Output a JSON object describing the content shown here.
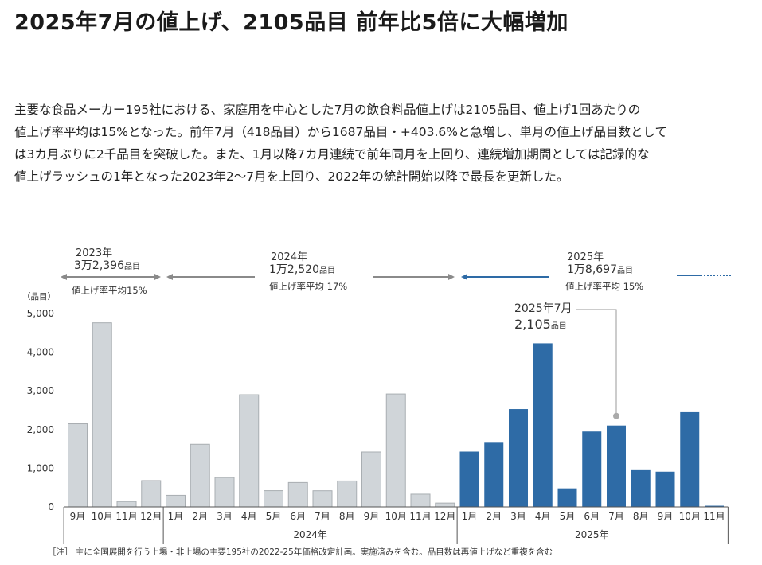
{
  "title": "2025年7月の値上げ、2105品目 前年比5倍に大幅増加",
  "lead_lines": [
    "主要な食品メーカー195社における、家庭用を中心とした7月の飲食料品値上げは2105品目、値上げ1回あたりの",
    "値上げ率平均は15%となった。前年7月（418品目）から1687品目・+403.6%と急増し、単月の値上げ品目数として",
    "は3カ月ぶりに2千品目を突破した。また、1月以降7カ月連続で前年同月を上回り、連続増加期間としては記録的な",
    "値上げラッシュの1年となった2023年2～7月を上回り、2022年の統計開始以降で最長を更新した。"
  ],
  "colors": {
    "gray_bar": "#d0d5d9",
    "gray_bar_stroke": "#a9aeb2",
    "blue_bar": "#2e6ba6",
    "arrow_gray": "#8a8a8a",
    "arrow_blue": "#2e6ba6"
  },
  "chart_data": {
    "type": "bar",
    "ylabel": "（品目）",
    "ylim": [
      0,
      5000
    ],
    "yticks": [
      0,
      1000,
      2000,
      3000,
      4000,
      5000
    ],
    "ytick_labels": [
      "0",
      "1,000",
      "2,000",
      "3,000",
      "4,000",
      "5,000"
    ],
    "groups": [
      {
        "year": "",
        "months": [
          "9月",
          "10月",
          "11月",
          "12月"
        ],
        "values": [
          2150,
          4760,
          140,
          680
        ],
        "highlight": false
      },
      {
        "year": "2024年",
        "months": [
          "1月",
          "2月",
          "3月",
          "4月",
          "5月",
          "6月",
          "7月",
          "8月",
          "9月",
          "10月",
          "11月",
          "12月"
        ],
        "values": [
          300,
          1620,
          760,
          2900,
          420,
          630,
          418,
          670,
          1420,
          2920,
          330,
          100
        ],
        "highlight": false
      },
      {
        "year": "2025年",
        "months": [
          "1月",
          "2月",
          "3月",
          "4月",
          "5月",
          "6月",
          "7月",
          "8月",
          "9月",
          "10月",
          "11月"
        ],
        "values": [
          1430,
          1660,
          2530,
          4230,
          480,
          1950,
          2105,
          970,
          910,
          2450,
          30
        ],
        "highlight": true
      }
    ],
    "summaries": [
      {
        "year": "2023年",
        "total_num": "3万2,396",
        "total_unit": "品目",
        "rate": "値上げ率平均15%"
      },
      {
        "year": "2024年",
        "total_num": "1万2,520",
        "total_unit": "品目",
        "rate": "値上げ率平均 17%"
      },
      {
        "year": "2025年",
        "total_num": "1万8,697",
        "total_unit": "品目",
        "rate": "値上げ率平均 15%"
      }
    ],
    "callout": {
      "label": "2025年7月",
      "value_num": "2,105",
      "value_unit": "品目"
    }
  },
  "footnote": "［注］ 主に全国展開を行う上場・非上場の主要195社の2022-25年価格改定計画。実施済みを含む。品目数は再値上げなど重複を含む"
}
